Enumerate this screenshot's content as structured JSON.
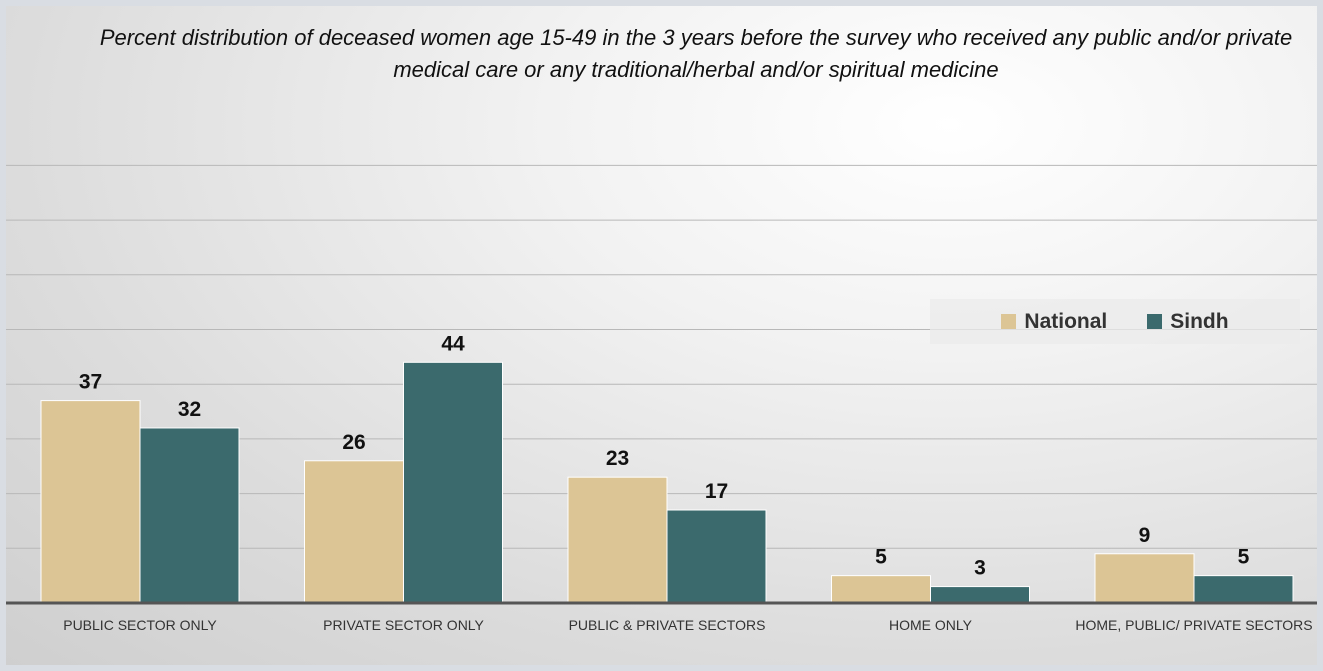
{
  "chart_data": {
    "type": "bar",
    "title": "Percent distribution of deceased women age 15-49 in the 3 years before the survey who received any public and/or private medical care or any traditional/herbal and/or spiritual medicine",
    "categories": [
      "PUBLIC SECTOR ONLY",
      "PRIVATE SECTOR ONLY",
      "PUBLIC & PRIVATE SECTORS",
      "HOME ONLY",
      "HOME, PUBLIC/ PRIVATE SECTORS"
    ],
    "series": [
      {
        "name": "National",
        "values": [
          37,
          26,
          23,
          5,
          9
        ],
        "color": "#dcc595"
      },
      {
        "name": "Sindh",
        "values": [
          32,
          44,
          17,
          3,
          5
        ],
        "color": "#3b6a6d"
      }
    ],
    "ylim": [
      0,
      50
    ],
    "grid": true,
    "legend_position": "right"
  }
}
